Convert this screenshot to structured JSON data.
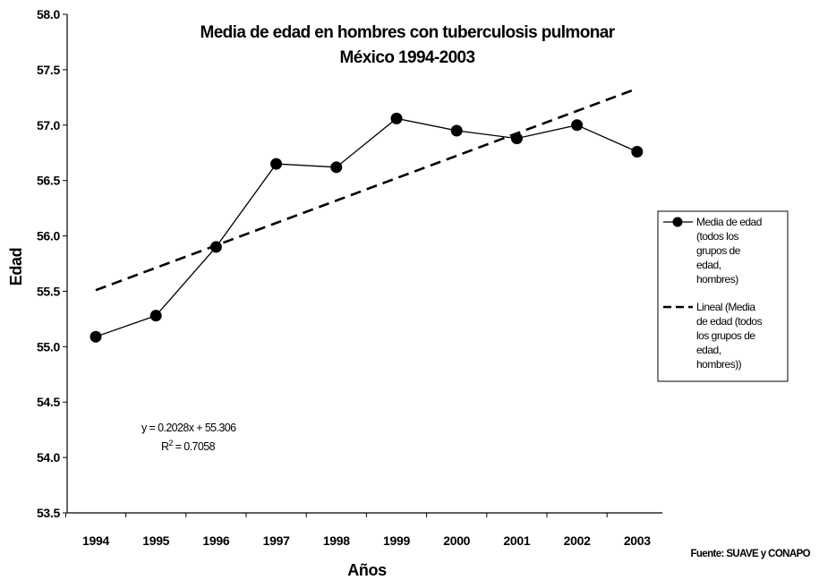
{
  "chart_data": {
    "type": "line",
    "title": [
      "Media de edad en hombres con tuberculosis pulmonar",
      "México 1994-2003"
    ],
    "xlabel": "Años",
    "ylabel": "Edad",
    "categories": [
      "1994",
      "1995",
      "1996",
      "1997",
      "1998",
      "1999",
      "2000",
      "2001",
      "2002",
      "2003"
    ],
    "ylim": [
      53.5,
      58.0
    ],
    "yticks": [
      "58.0",
      "57.5",
      "57.0",
      "56.5",
      "56.0",
      "55.5",
      "55.0",
      "54.5",
      "54.0",
      "53.5"
    ],
    "grid": false,
    "legend_position": "right",
    "series": [
      {
        "name": "Media de edad (todos los grupos de edad, hombres)",
        "style": "solid-markers",
        "color": "#000000",
        "values": [
          55.09,
          55.28,
          55.9,
          56.65,
          56.62,
          57.06,
          56.95,
          56.88,
          57.0,
          56.76
        ]
      },
      {
        "name": "Lineal (Media de edad (todos los grupos de edad, hombres))",
        "style": "dashed",
        "color": "#000000",
        "trend": {
          "slope": 0.2028,
          "intercept": 55.306
        },
        "values": [
          55.51,
          55.71,
          55.92,
          56.12,
          56.33,
          56.53,
          56.73,
          56.93,
          57.13,
          57.33
        ]
      }
    ],
    "annotations": {
      "equation": "y = 0.2028x + 55.306",
      "r2_label": "R",
      "r2_sup": "2",
      "r2_value": " = 0.7058"
    },
    "legend": [
      [
        "Media de edad",
        "(todos los",
        "grupos de",
        "edad,",
        "hombres)"
      ],
      [
        "Lineal (Media",
        "de edad (todos",
        "los grupos de",
        "edad,",
        "hombres))"
      ]
    ],
    "source": "Fuente: SUAVE y CONAPO"
  }
}
